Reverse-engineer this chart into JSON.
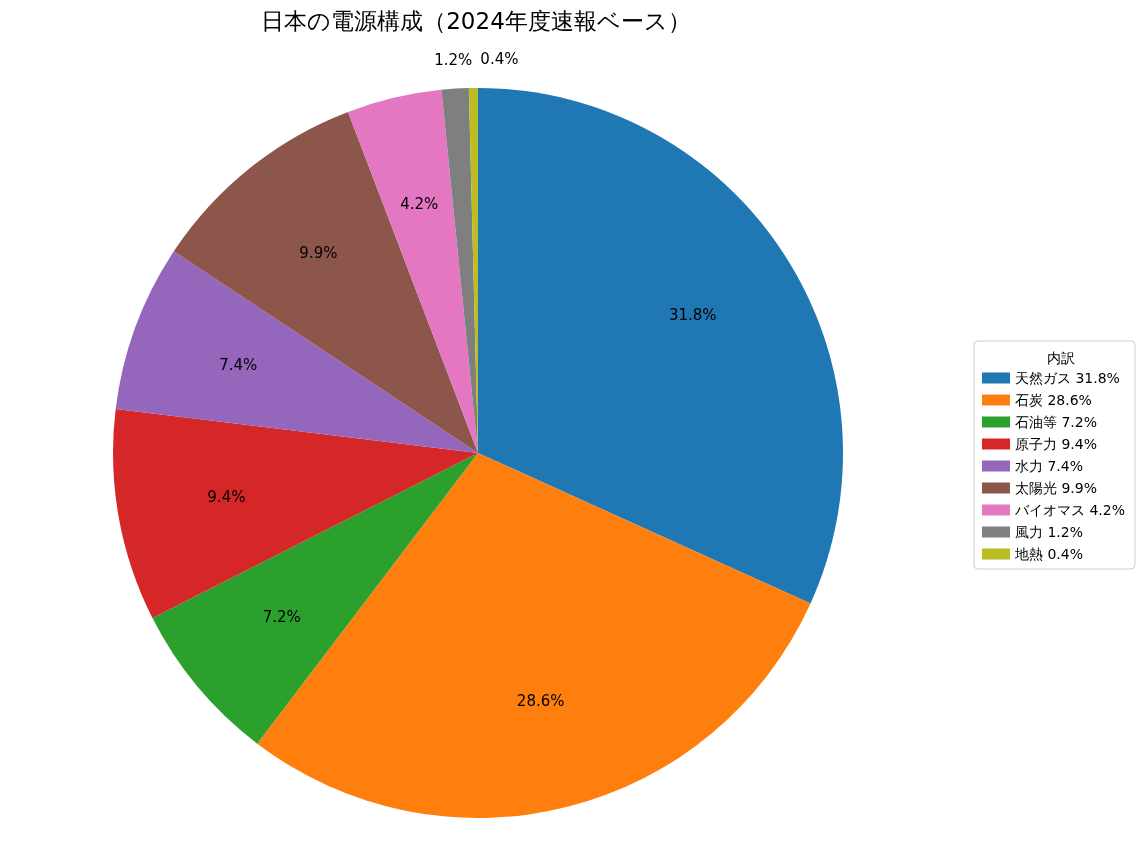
{
  "chart_data": {
    "type": "pie",
    "title": "日本の電源構成（2024年度速報ベース）",
    "legend_title": "内訳",
    "categories": [
      "天然ガス",
      "石炭",
      "石油等",
      "原子力",
      "水力",
      "太陽光",
      "バイオマス",
      "風力",
      "地熱"
    ],
    "values": [
      31.8,
      28.6,
      7.2,
      9.4,
      7.4,
      9.9,
      4.2,
      1.2,
      0.4
    ],
    "colors": [
      "#1f77b4",
      "#ff7f0e",
      "#2ca02c",
      "#d62728",
      "#9467bd",
      "#8c564b",
      "#e377c2",
      "#7f7f7f",
      "#bcbd22"
    ],
    "value_labels": [
      "31.8%",
      "28.6%",
      "7.2%",
      "9.4%",
      "7.4%",
      "9.9%",
      "4.2%",
      "1.2%",
      "0.4%"
    ],
    "legend": "right"
  }
}
